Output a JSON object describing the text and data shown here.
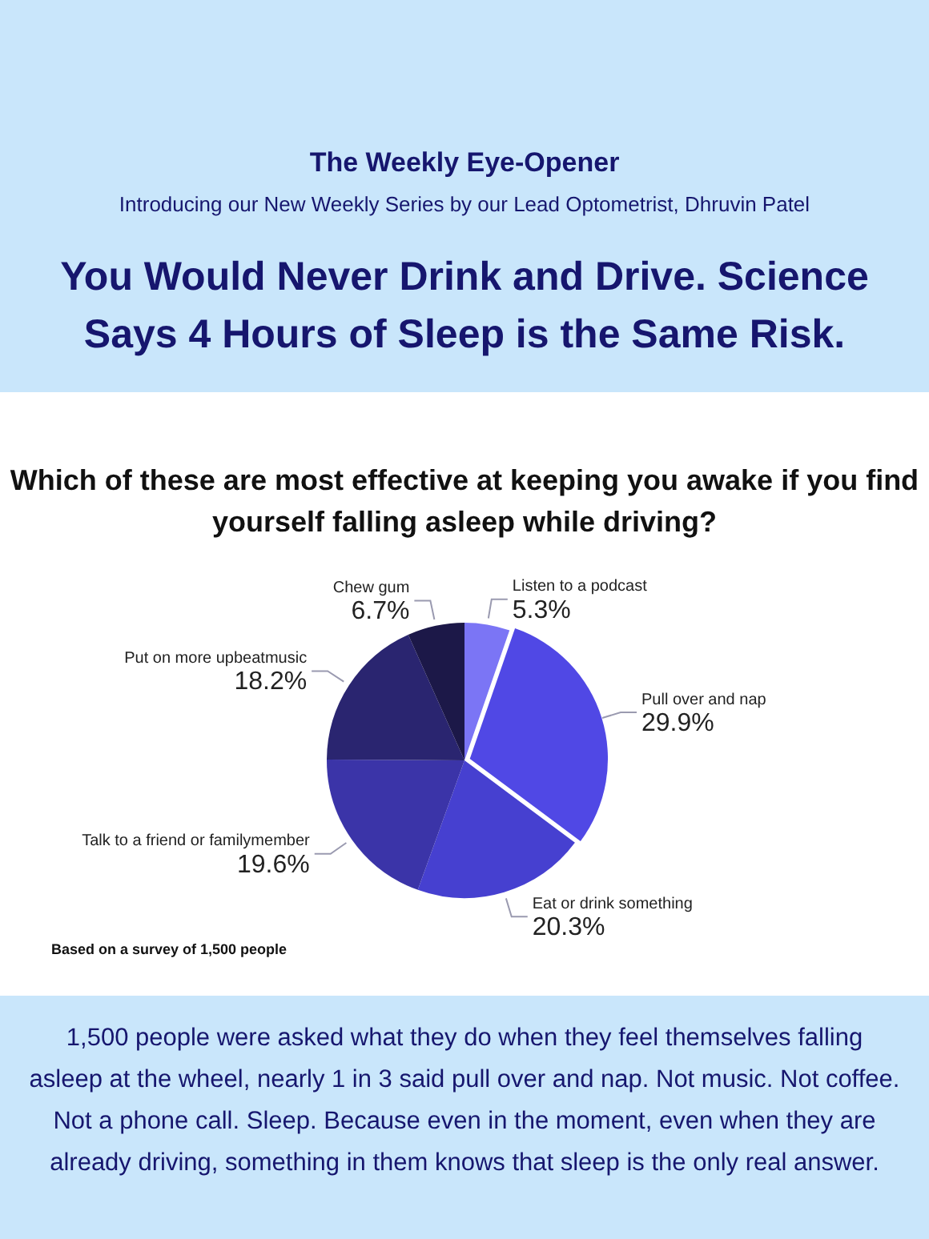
{
  "chart_data": {
    "type": "pie",
    "title": "The Weekly Eye-Opener",
    "subtitle": "Introducing our New Weekly Series by our Lead Optometrist, Dhruvin Patel",
    "annotations": [
      "You Would Never Drink and Drive. Science Says 4 Hours of Sleep is the Same Risk.",
      "Which of these are most effective at keeping you awake if you find yourself falling asleep while driving?",
      "Based on a survey of 1,500 people",
      "1,500 people were asked what they do when they feel themselves falling asleep at the wheel, nearly 1 in 3 said pull over and nap. Not music. Not coffee. Not a phone call. Sleep. Because even in the moment, even when they are already driving, something in them knows that sleep is the only real answer."
    ],
    "categories": [
      "Listen to a podcast",
      "Pull over and nap",
      "Eat or drink something",
      "Talk to a friend or familymember",
      "Put on more upbeatmusic",
      "Chew gum"
    ],
    "values": [
      5.3,
      29.9,
      20.3,
      19.6,
      18.2,
      6.7
    ],
    "value_labels": [
      "5.3%",
      "29.9%",
      "20.3%",
      "19.6%",
      "18.2%",
      "6.7%"
    ],
    "colors": [
      "#7b75f5",
      "#5048e5",
      "#4640d0",
      "#3b34a8",
      "#2a2570",
      "#1c1848"
    ],
    "legend": false
  }
}
